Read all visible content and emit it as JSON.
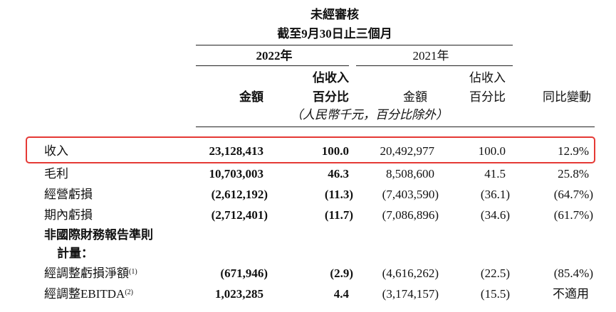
{
  "header": {
    "line1": "未經審核",
    "line2": "截至9月30日止三個月",
    "year_current": "2022年",
    "year_prior": "2021年",
    "col_amount_current": "金額",
    "col_pct_current_line1": "佔收入",
    "col_pct_current_line2": "百分比",
    "col_amount_prior": "金額",
    "col_pct_prior_line1": "佔收入",
    "col_pct_prior_line2": "百分比",
    "col_yoy": "同比變動",
    "units_note": "（人民幣千元，百分比除外）"
  },
  "rows": [
    {
      "label": "收入",
      "amt22": "23,128,413",
      "pct22": "100.0",
      "amt21": "20,492,977",
      "pct21": "100.0",
      "yoy": "12.9%"
    },
    {
      "label": "毛利",
      "amt22": "10,703,003",
      "pct22": "46.3",
      "amt21": "8,508,600",
      "pct21": "41.5",
      "yoy": "25.8%"
    },
    {
      "label": "經營虧損",
      "amt22": "(2,612,192)",
      "pct22": "(11.3)",
      "amt21": "(7,403,590)",
      "pct21": "(36.1)",
      "yoy": "(64.7%)"
    },
    {
      "label": "期內虧損",
      "amt22": "(2,712,401)",
      "pct22": "(11.7)",
      "amt21": "(7,086,896)",
      "pct21": "(34.6)",
      "yoy": "(61.7%)"
    }
  ],
  "section": {
    "line1": "非國際財務報告準則",
    "line2": "計量："
  },
  "adjusted_rows": [
    {
      "label": "經調整虧損淨額",
      "note": "(1)",
      "amt22": "(671,946)",
      "pct22": "(2.9)",
      "amt21": "(4,616,262)",
      "pct21": "(22.5)",
      "yoy": "(85.4%)"
    },
    {
      "label": "經調整EBITDA",
      "note": "(2)",
      "amt22": "1,023,285",
      "pct22": "4.4",
      "amt21": "(3,174,157)",
      "pct21": "(15.5)",
      "yoy": "不適用"
    }
  ],
  "highlight_color": "#e53935"
}
